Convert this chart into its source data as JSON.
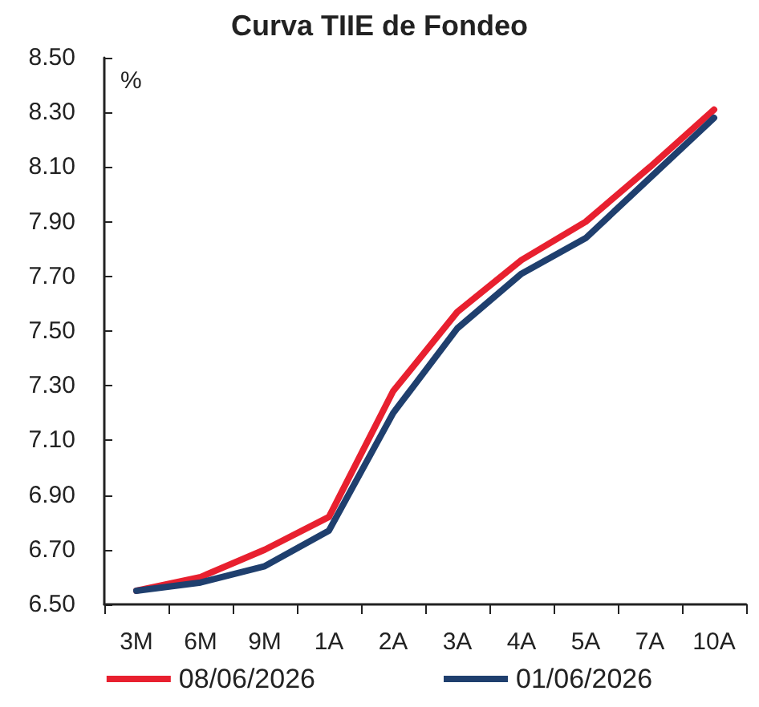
{
  "chart_data": {
    "type": "line",
    "title": "Curva TIIE de Fondeo",
    "ylabel": "%",
    "categories": [
      "3M",
      "6M",
      "9M",
      "1A",
      "2A",
      "3A",
      "4A",
      "5A",
      "7A",
      "10A"
    ],
    "series": [
      {
        "name": "08/06/2026",
        "color": "#e8202f",
        "values": [
          6.55,
          6.6,
          6.7,
          6.82,
          7.28,
          7.57,
          7.76,
          7.9,
          8.1,
          8.31
        ]
      },
      {
        "name": "01/06/2026",
        "color": "#1f3f6e",
        "values": [
          6.55,
          6.58,
          6.64,
          6.77,
          7.2,
          7.51,
          7.71,
          7.84,
          8.06,
          8.28
        ]
      }
    ],
    "ylim": [
      6.5,
      8.5
    ],
    "yticks": [
      {
        "value": 6.5,
        "label": "6.50"
      },
      {
        "value": 6.7,
        "label": "6.70"
      },
      {
        "value": 6.9,
        "label": "6.90"
      },
      {
        "value": 7.1,
        "label": "7.10"
      },
      {
        "value": 7.3,
        "label": "7.30"
      },
      {
        "value": 7.5,
        "label": "7.50"
      },
      {
        "value": 7.7,
        "label": "7.70"
      },
      {
        "value": 7.9,
        "label": "7.90"
      },
      {
        "value": 8.1,
        "label": "8.10"
      },
      {
        "value": 8.3,
        "label": "8.30"
      },
      {
        "value": 8.5,
        "label": "8.50"
      }
    ],
    "grid": false,
    "legend": "bottom",
    "marker": "none",
    "line_style": "solid"
  }
}
